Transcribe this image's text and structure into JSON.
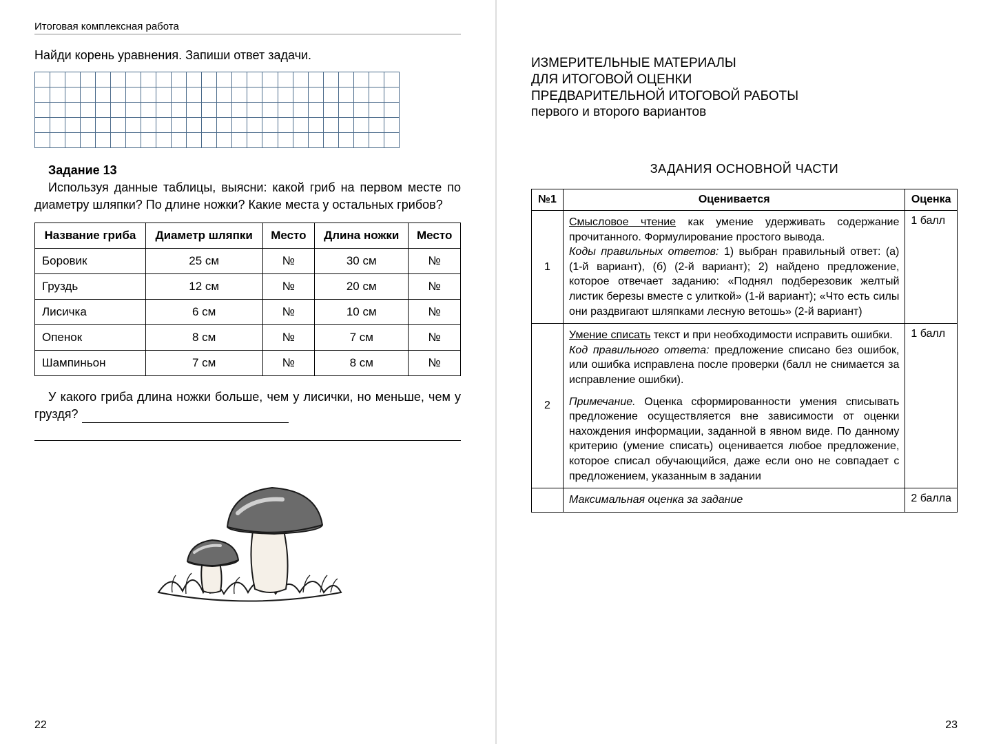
{
  "left": {
    "header": "Итоговая комплексная работа",
    "instruction": "Найди корень уравнения. Запиши ответ задачи.",
    "grid": {
      "rows": 5,
      "cols": 24
    },
    "task13": {
      "title": "Задание 13",
      "text": "Используя данные таблицы, выясни: какой гриб на первом месте по диаметру шляпки? По длине ножки? Какие места у остальных грибов?"
    },
    "table": {
      "headers": [
        "Название гриба",
        "Диаметр шляпки",
        "Место",
        "Длина ножки",
        "Место"
      ],
      "rows": [
        {
          "name": "Боровик",
          "diam": "25 см",
          "place1": "№",
          "len": "30 см",
          "place2": "№"
        },
        {
          "name": "Груздь",
          "diam": "12 см",
          "place1": "№",
          "len": "20 см",
          "place2": "№"
        },
        {
          "name": "Лисичка",
          "diam": "6 см",
          "place1": "№",
          "len": "10 см",
          "place2": "№"
        },
        {
          "name": "Опенок",
          "diam": "8 см",
          "place1": "№",
          "len": "7 см",
          "place2": "№"
        },
        {
          "name": "Шампиньон",
          "diam": "7 см",
          "place1": "№",
          "len": "8 см",
          "place2": "№"
        }
      ]
    },
    "question": "У какого гриба длина ножки больше, чем у лисички, но меньше, чем у груздя?",
    "page_num": "22",
    "mushroom": {
      "cap_color": "#6b6b6b",
      "cap_highlight": "#9a9a9a",
      "stem_color": "#f5f0e8",
      "grass_stroke": "#2a2a2a",
      "outline": "#1a1a1a"
    }
  },
  "right": {
    "title_line1": "ИЗМЕРИТЕЛЬНЫЕ МАТЕРИАЛЫ",
    "title_line2": "ДЛЯ ИТОГОВОЙ ОЦЕНКИ",
    "title_line3": "ПРЕДВАРИТЕЛЬНОЙ ИТОГОВОЙ РАБОТЫ",
    "title_line4": "первого и второго вариантов",
    "section": "ЗАДАНИЯ ОСНОВНОЙ ЧАСТИ",
    "eval_headers": {
      "num": "№1",
      "desc": "Оценивается",
      "score": "Оценка"
    },
    "row1": {
      "num": "1",
      "lead": "Смысловое чтение",
      "lead_rest": " как умение удерживать содержание прочитанного. Формулирование простого вывода.",
      "codes_label": "Коды правильных ответов:",
      "codes_text": " 1) выбран правильный ответ: (а) (1-й вариант), (б) (2-й вариант); 2) найдено предложение, которое отвечает заданию: «Поднял подберезовик желтый листик березы вместе с улиткой» (1-й вариант); «Что есть силы они раздвигают шляпками лесную ветошь» (2-й вариант)",
      "score": "1 балл"
    },
    "row2": {
      "num": "2",
      "lead": "Умение списать",
      "lead_rest": " текст и при необходимости исправить ошибки.",
      "code_label": "Код правильного ответа:",
      "code_text": " предложение списано без ошибок, или ошибка исправлена после проверки (балл не снимается за исправление ошибки).",
      "note_label": "Примечание.",
      "note_text": " Оценка сформированности умения списывать предложение осуществляется вне зависимости от оценки нахождения информации, заданной в явном виде. По данному критерию (умение списать) оценивается любое предложение, которое списал обучающийся, даже если оно не совпадает с предложением, указанным в задании",
      "score": "1 балл"
    },
    "max_row": {
      "label": "Максимальная оценка за задание",
      "score": "2 балла"
    },
    "page_num": "23"
  }
}
